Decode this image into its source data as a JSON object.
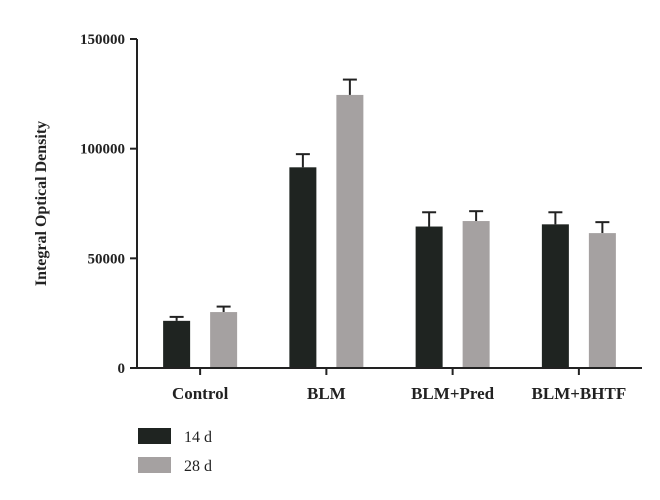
{
  "chart_data": {
    "type": "bar",
    "categories": [
      "Control",
      "BLM",
      "BLM+Pred",
      "BLM+BHTF"
    ],
    "series": [
      {
        "name": "14 d",
        "color": "#1f2421",
        "values": [
          21500,
          91500,
          64500,
          65500
        ],
        "errors": [
          1800,
          6000,
          6500,
          5500
        ]
      },
      {
        "name": "28 d",
        "color": "#a5a1a1",
        "values": [
          25500,
          124500,
          67000,
          61500
        ],
        "errors": [
          2500,
          7000,
          4500,
          5000
        ]
      }
    ],
    "xlabel": "",
    "ylabel": "Integral Optical Density",
    "ylim": [
      0,
      150000
    ],
    "yticks": [
      0,
      50000,
      100000,
      150000
    ],
    "grid": false,
    "legend_position": "bottom-left"
  }
}
